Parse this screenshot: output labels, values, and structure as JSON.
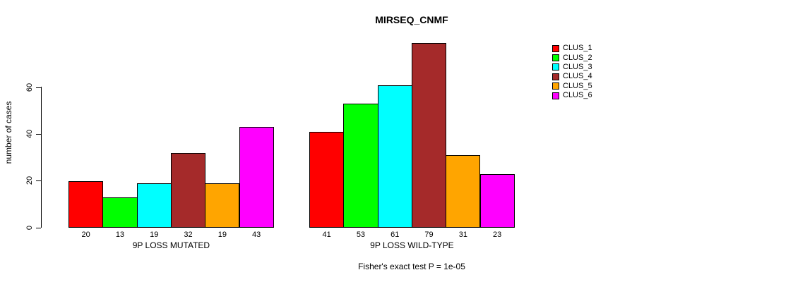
{
  "chart_data": {
    "type": "bar",
    "title": "MIRSEQ_CNMF",
    "ylabel": "number of cases",
    "footnote": "Fisher's exact test P = 1e-05",
    "yticks": [
      0,
      20,
      40,
      60
    ],
    "ylim": [
      0,
      60
    ],
    "grid": false,
    "legend_position": "topright",
    "series": [
      {
        "name": "CLUS_1",
        "color": "#FF0000"
      },
      {
        "name": "CLUS_2",
        "color": "#00FF00"
      },
      {
        "name": "CLUS_3",
        "color": "#00FFFF"
      },
      {
        "name": "CLUS_4",
        "color": "#A52A2A"
      },
      {
        "name": "CLUS_5",
        "color": "#FFA500"
      },
      {
        "name": "CLUS_6",
        "color": "#FF00FF"
      }
    ],
    "groups": [
      {
        "label": "9P LOSS MUTATED",
        "values": [
          20,
          13,
          19,
          32,
          19,
          43
        ]
      },
      {
        "label": "9P LOSS WILD-TYPE",
        "values": [
          41,
          53,
          61,
          79,
          31,
          23
        ]
      }
    ]
  }
}
